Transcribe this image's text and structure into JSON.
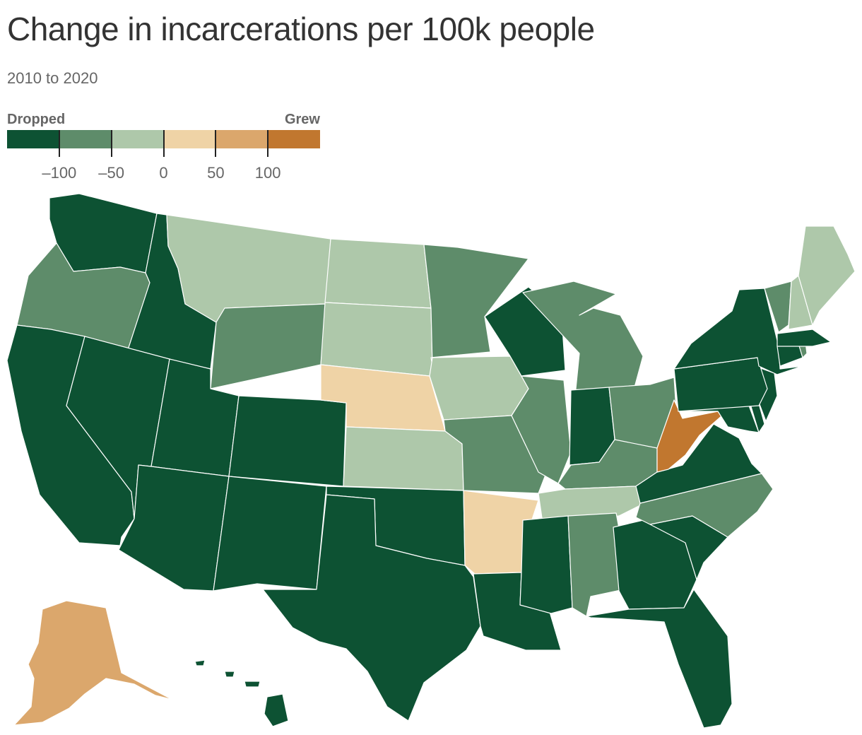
{
  "title": "Change in incarcerations per 100k people",
  "subtitle": "2010 to 2020",
  "legend": {
    "low_label": "Dropped",
    "high_label": "Grew",
    "bins": [
      {
        "color": "#0d5233"
      },
      {
        "color": "#5e8c6a"
      },
      {
        "color": "#aec8aa"
      },
      {
        "color": "#efd3a6"
      },
      {
        "color": "#dba76c"
      },
      {
        "color": "#c1772f"
      }
    ],
    "tick_labels": [
      "–100",
      "–50",
      "0",
      "50",
      "100"
    ]
  },
  "map_data": {
    "description_key": "change in incarcerations per 100k people, binned",
    "states": [
      {
        "id": "WA",
        "bin": 0
      },
      {
        "id": "OR",
        "bin": 1
      },
      {
        "id": "CA",
        "bin": 0
      },
      {
        "id": "ID",
        "bin": 0
      },
      {
        "id": "NV",
        "bin": 0
      },
      {
        "id": "MT",
        "bin": 2
      },
      {
        "id": "WY",
        "bin": 1
      },
      {
        "id": "UT",
        "bin": 0
      },
      {
        "id": "AZ",
        "bin": 0
      },
      {
        "id": "CO",
        "bin": 0
      },
      {
        "id": "NM",
        "bin": 0
      },
      {
        "id": "ND",
        "bin": 2
      },
      {
        "id": "SD",
        "bin": 2
      },
      {
        "id": "NE",
        "bin": 3
      },
      {
        "id": "KS",
        "bin": 2
      },
      {
        "id": "OK",
        "bin": 0
      },
      {
        "id": "TX",
        "bin": 0
      },
      {
        "id": "MN",
        "bin": 1
      },
      {
        "id": "IA",
        "bin": 2
      },
      {
        "id": "MO",
        "bin": 1
      },
      {
        "id": "AR",
        "bin": 3
      },
      {
        "id": "LA",
        "bin": 0
      },
      {
        "id": "WI",
        "bin": 0
      },
      {
        "id": "IL",
        "bin": 1
      },
      {
        "id": "MI",
        "bin": 1
      },
      {
        "id": "IN",
        "bin": 0
      },
      {
        "id": "OH",
        "bin": 1
      },
      {
        "id": "KY",
        "bin": 1
      },
      {
        "id": "TN",
        "bin": 2
      },
      {
        "id": "MS",
        "bin": 0
      },
      {
        "id": "AL",
        "bin": 1
      },
      {
        "id": "GA",
        "bin": 0
      },
      {
        "id": "FL",
        "bin": 0
      },
      {
        "id": "SC",
        "bin": 0
      },
      {
        "id": "NC",
        "bin": 1
      },
      {
        "id": "VA",
        "bin": 0
      },
      {
        "id": "WV",
        "bin": 5
      },
      {
        "id": "MD",
        "bin": 0
      },
      {
        "id": "DE",
        "bin": 0
      },
      {
        "id": "NJ",
        "bin": 0
      },
      {
        "id": "PA",
        "bin": 0
      },
      {
        "id": "NY",
        "bin": 0
      },
      {
        "id": "CT",
        "bin": 0
      },
      {
        "id": "RI",
        "bin": 1
      },
      {
        "id": "MA",
        "bin": 0
      },
      {
        "id": "VT",
        "bin": 1
      },
      {
        "id": "NH",
        "bin": 2
      },
      {
        "id": "ME",
        "bin": 2
      },
      {
        "id": "AK",
        "bin": 4
      },
      {
        "id": "HI",
        "bin": 0
      }
    ]
  }
}
